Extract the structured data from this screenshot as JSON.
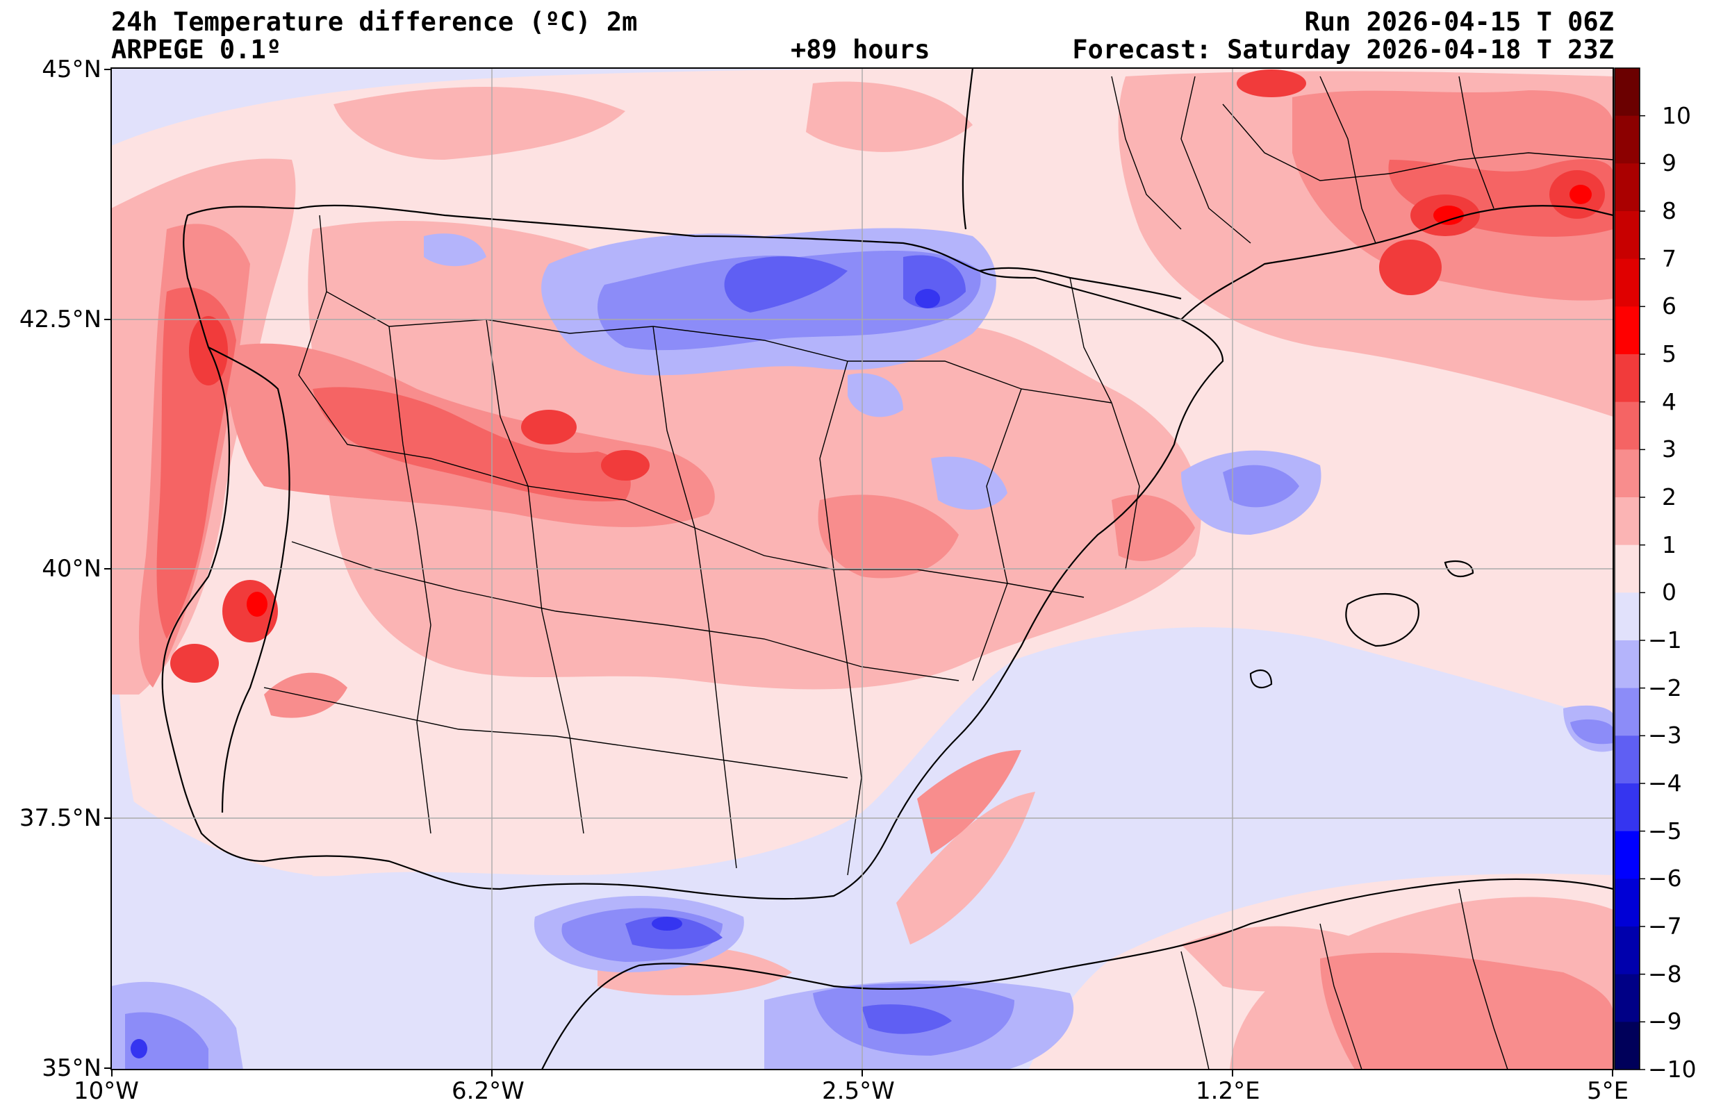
{
  "header": {
    "title": "24h Temperature difference (ºC) 2m",
    "model": "ARPEGE 0.1º",
    "lead": "+89 hours",
    "run": "Run 2026-04-15 T 06Z",
    "forecast": "Forecast: Saturday 2026-04-18 T 23Z"
  },
  "axes": {
    "lat_ticks": [
      "45°N",
      "42.5°N",
      "40°N",
      "37.5°N",
      "35°N"
    ],
    "lon_ticks": [
      "10°W",
      "6.2°W",
      "2.5°W",
      "1.2°E",
      "5°E"
    ]
  },
  "colorbar": {
    "labels": [
      "10",
      "9",
      "8",
      "7",
      "6",
      "5",
      "4",
      "3",
      "2",
      "1",
      "0",
      "−1",
      "−2",
      "−3",
      "−4",
      "−5",
      "−6",
      "−7",
      "−8",
      "−9",
      "−10"
    ],
    "colors": [
      "#6b0000",
      "#8c0000",
      "#aa0000",
      "#c80000",
      "#e00000",
      "#ff0000",
      "#f13b3b",
      "#f56464",
      "#f88d8d",
      "#fbb4b4",
      "#fde2e2",
      "#e1e1fb",
      "#b4b4fb",
      "#8c8cf8",
      "#5f5ff3",
      "#3535f0",
      "#0000ff",
      "#0000d6",
      "#0000ad",
      "#000086",
      "#00005a"
    ]
  },
  "regions": [
    {
      "name": "cold-cantabrian-mountains",
      "fill": "#8c8cf8"
    },
    {
      "name": "cold-alboran-sea",
      "fill": "#5f5ff3"
    },
    {
      "name": "cold-north-morocco",
      "fill": "#5f5ff3"
    },
    {
      "name": "warm-portugal-coast",
      "fill": "#f13b3b"
    },
    {
      "name": "warm-southern-france",
      "fill": "#f13b3b"
    }
  ]
}
